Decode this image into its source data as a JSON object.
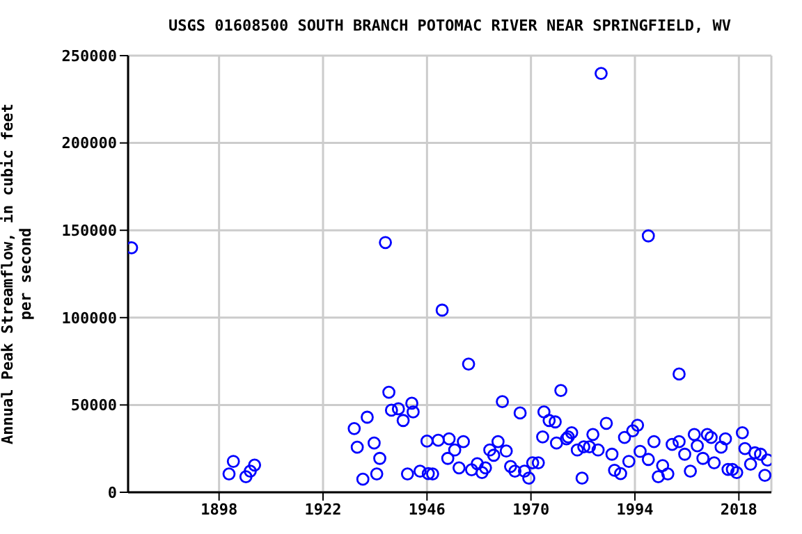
{
  "chart_data": {
    "type": "scatter",
    "title": "USGS 01608500 SOUTH BRANCH POTOMAC RIVER NEAR SPRINGFIELD, WV",
    "ylabel": "Annual Peak Streamflow, in cubic feet per second",
    "x": [
      1877.8,
      1900.3,
      1901.3,
      1904.2,
      1905.2,
      1906.2,
      1929.2,
      1929.9,
      1931.2,
      1932.2,
      1933.8,
      1934.4,
      1935.1,
      1936.4,
      1937.2,
      1937.8,
      1939.4,
      1940.5,
      1941.5,
      1942.5,
      1942.8,
      1944.4,
      1946,
      1946.3,
      1947.3,
      1948.6,
      1949.5,
      1950.8,
      1951.1,
      1952.4,
      1953.4,
      1954.4,
      1955.6,
      1956.3,
      1957.6,
      1958.7,
      1959.5,
      1960.5,
      1961.4,
      1962.4,
      1963.4,
      1964.3,
      1965.3,
      1966.3,
      1967.5,
      1968.5,
      1969.5,
      1970.4,
      1971.7,
      1972.7,
      1973,
      1974.2,
      1975.6,
      1975.9,
      1976.9,
      1978.2,
      1978.6,
      1979.4,
      1980.7,
      1981.8,
      1982.2,
      1983.5,
      1984.3,
      1985.5,
      1986.2,
      1987.4,
      1988.7,
      1989.3,
      1990.7,
      1991.6,
      1992.6,
      1993.5,
      1994.6,
      1995.2,
      1997.1,
      1997.1,
      1998.4,
      1999.4,
      2000.4,
      2001.6,
      2002.6,
      2004.2,
      2004.2,
      2005.5,
      2006.8,
      2007.7,
      2008.4,
      2009.7,
      2010.7,
      2011.6,
      2012.3,
      2013.9,
      2014.9,
      2015.5,
      2016.5,
      2017.5,
      2018.8,
      2019.4,
      2020.7,
      2021.7,
      2023,
      2024,
      2024.6
    ],
    "series": [
      {
        "color": "#0000ff",
        "values": [
          140000,
          10500,
          17700,
          8900,
          12100,
          15600,
          36500,
          25800,
          7500,
          43000,
          28200,
          10500,
          19400,
          143000,
          57300,
          47000,
          47800,
          41100,
          10500,
          51000,
          46000,
          12100,
          29300,
          10700,
          10500,
          29800,
          104300,
          19400,
          30600,
          24200,
          14000,
          29000,
          73400,
          12900,
          16400,
          11300,
          14000,
          24200,
          21200,
          29000,
          51900,
          23600,
          14800,
          12100,
          45400,
          12100,
          8100,
          16900,
          16900,
          31700,
          46000,
          41100,
          40300,
          28200,
          58300,
          30600,
          31700,
          34100,
          24200,
          8100,
          26000,
          26000,
          33100,
          24200,
          239800,
          39500,
          21800,
          12600,
          10700,
          31400,
          17700,
          35200,
          38400,
          23400,
          146800,
          18800,
          29000,
          8900,
          15300,
          10500,
          27400,
          29000,
          67700,
          21800,
          12100,
          33100,
          26600,
          19400,
          33100,
          31400,
          16900,
          25800,
          30600,
          13100,
          13100,
          11300,
          34100,
          25000,
          16100,
          22600,
          21800,
          9700,
          18500
        ]
      }
    ],
    "xlim": [
      1877,
      2025.5
    ],
    "xticks": [
      1898,
      1922,
      1946,
      1970,
      1994,
      2018
    ],
    "ylim": [
      0,
      250000
    ],
    "yticks": [
      0,
      50000,
      100000,
      150000,
      200000,
      250000
    ],
    "grid": true,
    "marker": "circle"
  }
}
